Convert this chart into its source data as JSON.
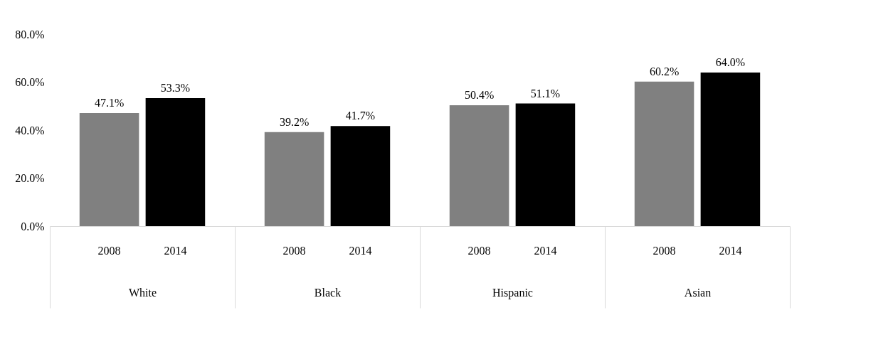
{
  "chart_data": {
    "type": "bar",
    "categories": [
      "White",
      "Black",
      "Hispanic",
      "Asian"
    ],
    "series": [
      {
        "name": "2008",
        "color": "#808080",
        "values": [
          47.1,
          39.2,
          50.4,
          60.2
        ],
        "value_labels": [
          "47.1%",
          "39.2%",
          "50.4%",
          "60.2%"
        ]
      },
      {
        "name": "2014",
        "color": "#000000",
        "values": [
          53.3,
          41.7,
          51.1,
          64.0
        ],
        "value_labels": [
          "53.3%",
          "41.7%",
          "51.1%",
          "64.0%"
        ]
      }
    ],
    "ylim": [
      0,
      80
    ],
    "yticks": [
      {
        "value": 0,
        "label": "0.0%"
      },
      {
        "value": 20,
        "label": "20.0%"
      },
      {
        "value": 40,
        "label": "40.0%"
      },
      {
        "value": 60,
        "label": "60.0%"
      },
      {
        "value": 80,
        "label": "80.0%"
      }
    ],
    "grid": false,
    "legend": false
  }
}
